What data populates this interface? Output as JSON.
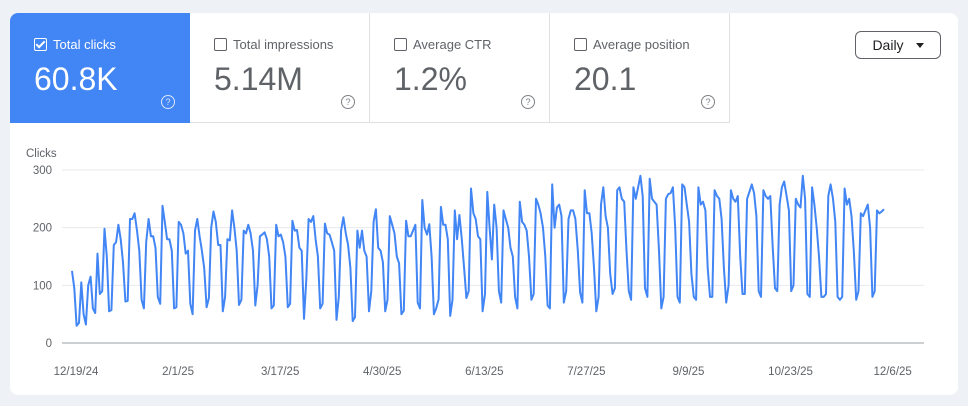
{
  "metrics": [
    {
      "label": "Total clicks",
      "value": "60.8K",
      "checked": true
    },
    {
      "label": "Total impressions",
      "value": "5.14M",
      "checked": false
    },
    {
      "label": "Average CTR",
      "value": "1.2%",
      "checked": false
    },
    {
      "label": "Average position",
      "value": "20.1",
      "checked": false
    }
  ],
  "help_glyph": "?",
  "granularity": "Daily",
  "colors": {
    "accent": "#4285f4",
    "line": "#4285f4"
  },
  "chart_data": {
    "type": "line",
    "ylabel": "Clicks",
    "ylim": [
      0,
      300
    ],
    "yticks": [
      "0",
      "100",
      "200",
      "300"
    ],
    "xticks": [
      "12/19/24",
      "2/1/25",
      "3/17/25",
      "4/30/25",
      "6/13/25",
      "7/27/25",
      "9/9/25",
      "10/23/25",
      "12/6/25"
    ],
    "xtick_day_offsets": [
      0,
      44,
      88,
      132,
      176,
      220,
      264,
      308,
      352
    ],
    "start_date": "12/19/24",
    "series": [
      {
        "name": "Clicks",
        "values": [
          125,
          95,
          30,
          35,
          105,
          50,
          32,
          100,
          115,
          60,
          52,
          155,
          85,
          90,
          198,
          150,
          55,
          57,
          170,
          175,
          205,
          180,
          140,
          72,
          73,
          215,
          215,
          225,
          195,
          160,
          75,
          60,
          175,
          215,
          185,
          185,
          165,
          80,
          68,
          238,
          210,
          180,
          180,
          160,
          60,
          62,
          210,
          205,
          190,
          155,
          160,
          68,
          50,
          195,
          215,
          185,
          160,
          130,
          62,
          78,
          200,
          228,
          210,
          170,
          170,
          55,
          80,
          180,
          178,
          230,
          200,
          160,
          66,
          75,
          195,
          190,
          205,
          190,
          160,
          65,
          100,
          185,
          188,
          192,
          180,
          150,
          60,
          65,
          205,
          185,
          188,
          175,
          150,
          62,
          68,
          212,
          195,
          196,
          165,
          160,
          42,
          110,
          215,
          210,
          220,
          180,
          150,
          60,
          68,
          207,
          190,
          188,
          175,
          160,
          40,
          80,
          195,
          218,
          190,
          170,
          130,
          38,
          45,
          195,
          165,
          195,
          160,
          150,
          55,
          90,
          210,
          232,
          165,
          160,
          140,
          55,
          75,
          220,
          205,
          190,
          150,
          138,
          50,
          56,
          212,
          185,
          185,
          195,
          205,
          70,
          60,
          248,
          200,
          188,
          206,
          150,
          50,
          60,
          76,
          236,
          205,
          205,
          180,
          47,
          75,
          230,
          180,
          222,
          180,
          130,
          78,
          90,
          268,
          225,
          215,
          185,
          180,
          55,
          85,
          262,
          200,
          145,
          240,
          200,
          90,
          70,
          230,
          215,
          200,
          165,
          150,
          80,
          60,
          245,
          210,
          205,
          195,
          150,
          75,
          85,
          250,
          240,
          225,
          200,
          150,
          65,
          60,
          275,
          200,
          235,
          240,
          220,
          70,
          90,
          215,
          230,
          230,
          215,
          160,
          88,
          70,
          265,
          225,
          225,
          190,
          130,
          55,
          80,
          240,
          270,
          220,
          200,
          120,
          85,
          95,
          265,
          270,
          250,
          245,
          160,
          90,
          75,
          270,
          250,
          270,
          290,
          255,
          95,
          80,
          285,
          250,
          245,
          240,
          160,
          60,
          80,
          250,
          258,
          260,
          270,
          200,
          80,
          70,
          275,
          270,
          240,
          210,
          120,
          80,
          75,
          270,
          240,
          245,
          230,
          130,
          80,
          80,
          265,
          255,
          250,
          215,
          130,
          70,
          100,
          265,
          250,
          245,
          255,
          150,
          85,
          85,
          250,
          262,
          275,
          260,
          220,
          90,
          80,
          265,
          255,
          250,
          255,
          170,
          95,
          90,
          240,
          270,
          280,
          255,
          230,
          90,
          100,
          250,
          240,
          235,
          290,
          250,
          85,
          80,
          270,
          240,
          200,
          150,
          80,
          80,
          85,
          255,
          275,
          250,
          210,
          80,
          75,
          80,
          268,
          240,
          250,
          220,
          160,
          75,
          90,
          225,
          220,
          230,
          240,
          200,
          80,
          90,
          230,
          225,
          228,
          232
        ]
      }
    ]
  }
}
